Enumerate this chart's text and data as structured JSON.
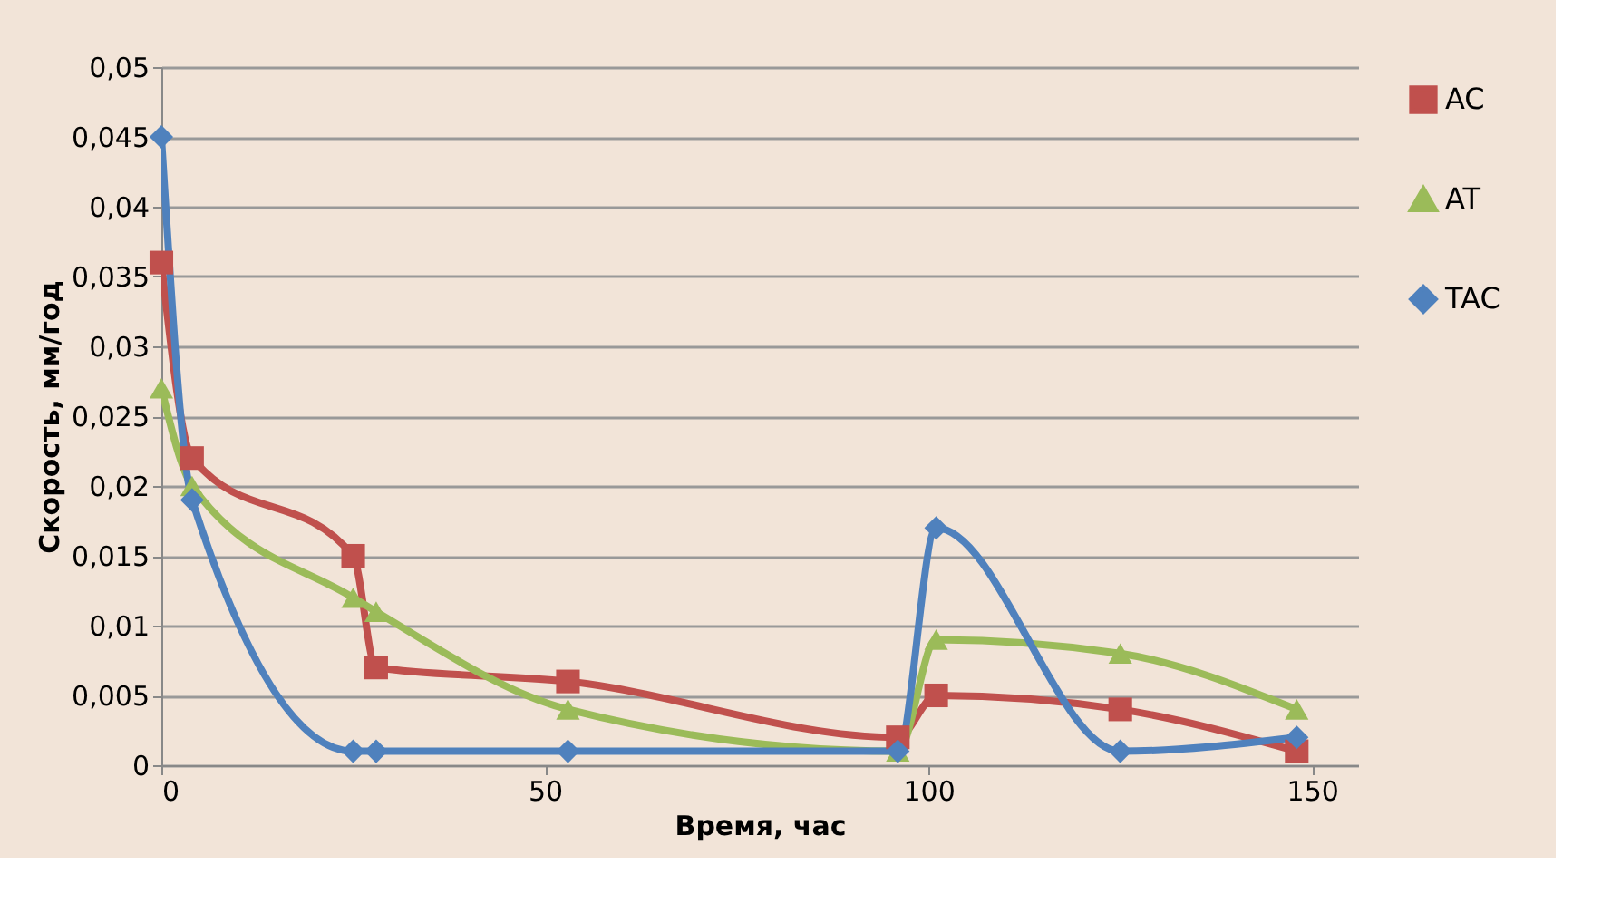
{
  "chart_data": {
    "type": "line",
    "xlabel": "Время, час",
    "ylabel": "Скорость, мм/год",
    "x": [
      0,
      4,
      25,
      28,
      53,
      96,
      101,
      125,
      148
    ],
    "series": [
      {
        "name": "AC",
        "color": "#c0504d",
        "marker": "square",
        "values": [
          0.036,
          0.022,
          0.015,
          0.007,
          0.006,
          0.002,
          0.005,
          0.004,
          0.001
        ]
      },
      {
        "name": "AT",
        "color": "#9bbb59",
        "marker": "triangle",
        "values": [
          0.027,
          0.02,
          0.012,
          0.011,
          0.004,
          0.001,
          0.009,
          0.008,
          0.004
        ]
      },
      {
        "name": "TAC",
        "color": "#4f81bd",
        "marker": "diamond",
        "values": [
          0.045,
          0.019,
          0.001,
          0.001,
          0.001,
          0.001,
          0.017,
          0.001,
          0.002
        ]
      }
    ],
    "xlim": [
      0,
      156
    ],
    "xticks": [
      0,
      50,
      100,
      150
    ],
    "ylim": [
      0,
      0.05
    ],
    "yticks": [
      0,
      {
        "value": 0.005,
        "label": "0,005"
      },
      {
        "value": 0.01,
        "label": "0,01"
      },
      {
        "value": 0.015,
        "label": "0,015"
      },
      {
        "value": 0.02,
        "label": "0,02"
      },
      {
        "value": 0.025,
        "label": "0,025"
      },
      {
        "value": 0.03,
        "label": "0,03"
      },
      {
        "value": 0.035,
        "label": "0,035"
      },
      {
        "value": 0.04,
        "label": "0,04"
      },
      {
        "value": 0.045,
        "label": "0,045"
      },
      {
        "value": 0.05,
        "label": "0,05"
      }
    ],
    "grid": "y",
    "legend": "right",
    "line_style": "solid"
  }
}
